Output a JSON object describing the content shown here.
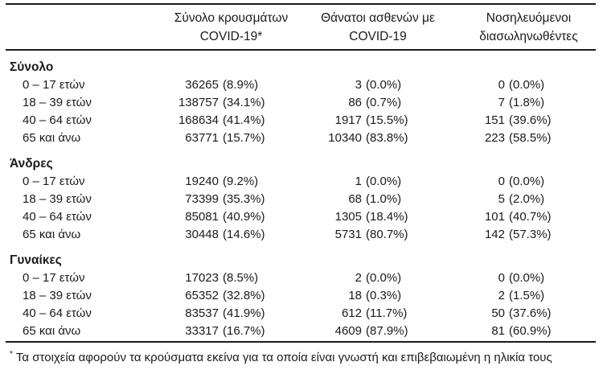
{
  "table": {
    "header": {
      "columns": [
        {
          "line1": "Σύνολο κρουσμάτων",
          "line2": "COVID-19*"
        },
        {
          "line1": "Θάνατοι ασθενών με",
          "line2": "COVID-19"
        },
        {
          "line1": "Νοσηλευόμενοι",
          "line2": "διασωληνωθέντες"
        }
      ]
    },
    "sections": [
      {
        "label": "Σύνολο",
        "rows": [
          {
            "label": "0 – 17 ετών",
            "cells": [
              {
                "n": "36265",
                "p": "(8.9%)"
              },
              {
                "n": "3",
                "p": "(0.0%)"
              },
              {
                "n": "0",
                "p": "(0.0%)"
              }
            ]
          },
          {
            "label": "18 – 39 ετών",
            "cells": [
              {
                "n": "138757",
                "p": "(34.1%)"
              },
              {
                "n": "86",
                "p": "(0.7%)"
              },
              {
                "n": "7",
                "p": "(1.8%)"
              }
            ]
          },
          {
            "label": "40 – 64 ετών",
            "cells": [
              {
                "n": "168634",
                "p": "(41.4%)"
              },
              {
                "n": "1917",
                "p": "(15.5%)"
              },
              {
                "n": "151",
                "p": "(39.6%)"
              }
            ]
          },
          {
            "label": "65 και άνω",
            "cells": [
              {
                "n": "63771",
                "p": "(15.7%)"
              },
              {
                "n": "10340",
                "p": "(83.8%)"
              },
              {
                "n": "223",
                "p": "(58.5%)"
              }
            ]
          }
        ]
      },
      {
        "label": "Άνδρες",
        "rows": [
          {
            "label": "0 – 17 ετών",
            "cells": [
              {
                "n": "19240",
                "p": "(9.2%)"
              },
              {
                "n": "1",
                "p": "(0.0%)"
              },
              {
                "n": "0",
                "p": "(0.0%)"
              }
            ]
          },
          {
            "label": "18 – 39 ετών",
            "cells": [
              {
                "n": "73399",
                "p": "(35.3%)"
              },
              {
                "n": "68",
                "p": "(1.0%)"
              },
              {
                "n": "5",
                "p": "(2.0%)"
              }
            ]
          },
          {
            "label": "40 – 64 ετών",
            "cells": [
              {
                "n": "85081",
                "p": "(40.9%)"
              },
              {
                "n": "1305",
                "p": "(18.4%)"
              },
              {
                "n": "101",
                "p": "(40.7%)"
              }
            ]
          },
          {
            "label": "65 και άνω",
            "cells": [
              {
                "n": "30448",
                "p": "(14.6%)"
              },
              {
                "n": "5731",
                "p": "(80.7%)"
              },
              {
                "n": "142",
                "p": "(57.3%)"
              }
            ]
          }
        ]
      },
      {
        "label": "Γυναίκες",
        "rows": [
          {
            "label": "0 – 17 ετών",
            "cells": [
              {
                "n": "17023",
                "p": "(8.5%)"
              },
              {
                "n": "2",
                "p": "(0.0%)"
              },
              {
                "n": "0",
                "p": "(0.0%)"
              }
            ]
          },
          {
            "label": "18 – 39 ετών",
            "cells": [
              {
                "n": "65352",
                "p": "(32.8%)"
              },
              {
                "n": "18",
                "p": "(0.3%)"
              },
              {
                "n": "2",
                "p": "(1.5%)"
              }
            ]
          },
          {
            "label": "40 – 64 ετών",
            "cells": [
              {
                "n": "83537",
                "p": "(41.9%)"
              },
              {
                "n": "612",
                "p": "(11.7%)"
              },
              {
                "n": "50",
                "p": "(37.6%)"
              }
            ]
          },
          {
            "label": "65 και άνω",
            "cells": [
              {
                "n": "33317",
                "p": "(16.7%)"
              },
              {
                "n": "4609",
                "p": "(87.9%)"
              },
              {
                "n": "81",
                "p": "(60.9%)"
              }
            ]
          }
        ]
      }
    ],
    "footnote": {
      "marker": "*",
      "text": "Τα στοιχεία αφορούν τα κρούσματα εκείνα για τα οποία είναι γνωστή και επιβεβαιωμένη η ηλικία τους"
    }
  },
  "colors": {
    "text": "#1a1a1a",
    "rule": "#1a1a1a",
    "background": "#ffffff"
  }
}
